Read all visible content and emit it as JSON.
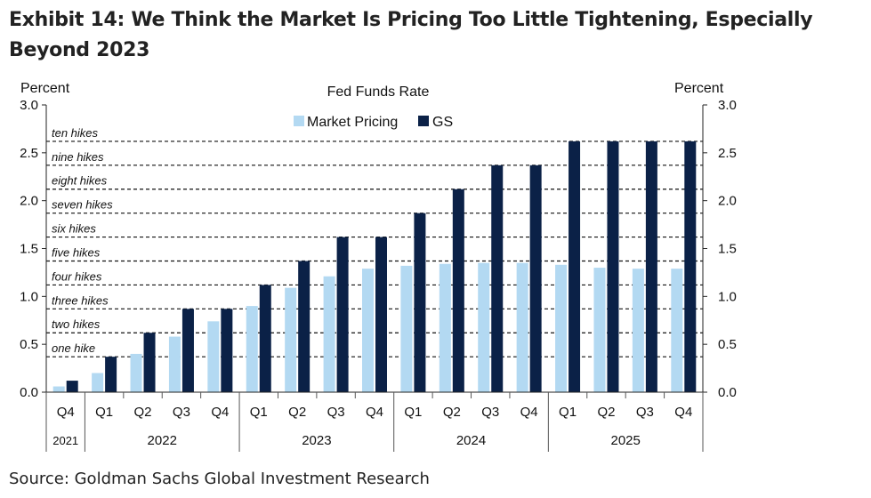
{
  "title": "Exhibit 14: We Think the Market Is Pricing Too Little Tightening, Especially Beyond 2023",
  "source": "Source: Goldman Sachs Global Investment Research",
  "chart_data": {
    "type": "bar",
    "title": "Fed Funds Rate",
    "ylabel_left": "Percent",
    "ylabel_right": "Percent",
    "ylim": [
      0,
      3.0
    ],
    "yticks": [
      "0.0",
      "0.5",
      "1.0",
      "1.5",
      "2.0",
      "2.5",
      "3.0"
    ],
    "ytick_values": [
      0,
      0.5,
      1.0,
      1.5,
      2.0,
      2.5,
      3.0
    ],
    "categories": [
      "Q4",
      "Q1",
      "Q2",
      "Q3",
      "Q4",
      "Q1",
      "Q2",
      "Q3",
      "Q4",
      "Q1",
      "Q2",
      "Q3",
      "Q4",
      "Q1",
      "Q2",
      "Q3",
      "Q4"
    ],
    "years": [
      {
        "label": "2021",
        "span": 1
      },
      {
        "label": "2022",
        "span": 4
      },
      {
        "label": "2023",
        "span": 4
      },
      {
        "label": "2024",
        "span": 4
      },
      {
        "label": "2025",
        "span": 4
      }
    ],
    "series": [
      {
        "name": "Market Pricing",
        "color": "#b3d9f2",
        "values": [
          0.06,
          0.2,
          0.4,
          0.58,
          0.74,
          0.9,
          1.09,
          1.21,
          1.29,
          1.32,
          1.34,
          1.35,
          1.35,
          1.33,
          1.3,
          1.29,
          1.29
        ]
      },
      {
        "name": "GS",
        "color": "#0b2147",
        "values": [
          0.12,
          0.37,
          0.62,
          0.87,
          0.87,
          1.12,
          1.37,
          1.62,
          1.62,
          1.87,
          2.12,
          2.37,
          2.37,
          2.62,
          2.62,
          2.62,
          2.62
        ]
      }
    ],
    "hike_lines": [
      {
        "label": "one hike",
        "value": 0.37
      },
      {
        "label": "two hikes",
        "value": 0.62
      },
      {
        "label": "three hikes",
        "value": 0.87
      },
      {
        "label": "four hikes",
        "value": 1.12
      },
      {
        "label": "five hikes",
        "value": 1.37
      },
      {
        "label": "six hikes",
        "value": 1.62
      },
      {
        "label": "seven hikes",
        "value": 1.87
      },
      {
        "label": "eight hikes",
        "value": 2.12
      },
      {
        "label": "nine hikes",
        "value": 2.37
      },
      {
        "label": "ten hikes",
        "value": 2.62
      }
    ],
    "grid": false,
    "legend_position": "top-center"
  }
}
